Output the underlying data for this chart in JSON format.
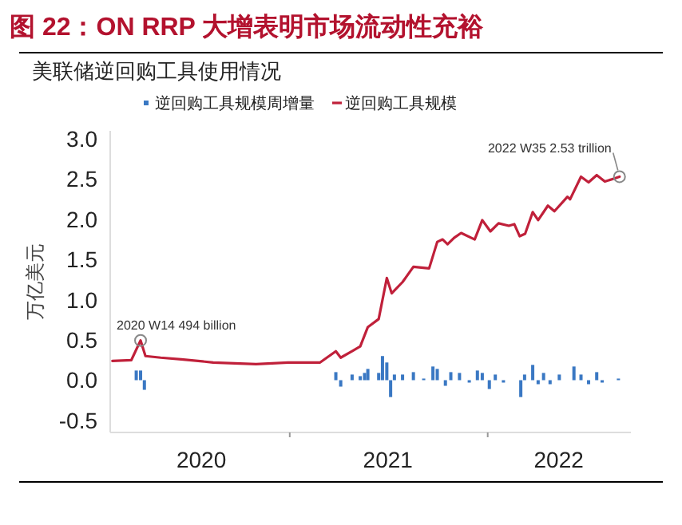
{
  "chart_data": {
    "type": "line",
    "title": "图 22：ON RRP 大增表明市场流动性充裕",
    "subtitle": "美联储逆回购工具使用情况",
    "ylabel": "万亿美元",
    "xlim": [
      "2020-02-05",
      "2022-09-22"
    ],
    "xticks": [
      {
        "value": "2020-07-22",
        "label": "2020"
      },
      {
        "value": "2021-01-01",
        "label": null
      },
      {
        "value": "2021-07-01",
        "label": "2021"
      },
      {
        "value": "2022-01-01",
        "label": null
      },
      {
        "value": "2022-05-12",
        "label": "2022"
      }
    ],
    "ylim": [
      -0.65,
      3.1
    ],
    "yticks": [
      {
        "value": -0.5,
        "label": "-0.5"
      },
      {
        "value": 0,
        "label": "0.0"
      },
      {
        "value": 0.5,
        "label": "0.5"
      },
      {
        "value": 1,
        "label": "1.0"
      },
      {
        "value": 1.5,
        "label": "1.5"
      },
      {
        "value": 2,
        "label": "2.0"
      },
      {
        "value": 2.5,
        "label": "2.5"
      },
      {
        "value": 3,
        "label": "3.0"
      }
    ],
    "legend": "top",
    "grid": false,
    "series": [
      {
        "name": "逆回购工具规模周增量",
        "type": "bar",
        "color": "#3a78c3",
        "x": [
          "2020-03-24",
          "2020-04-01",
          "2020-04-08",
          "2021-03-27",
          "2021-04-05",
          "2021-04-26",
          "2021-05-11",
          "2021-05-19",
          "2021-05-25",
          "2021-06-14",
          "2021-06-21",
          "2021-06-29",
          "2021-07-06",
          "2021-07-13",
          "2021-07-28",
          "2021-08-17",
          "2021-09-05",
          "2021-09-22",
          "2021-09-30",
          "2021-10-15",
          "2021-10-25",
          "2021-11-10",
          "2021-11-28",
          "2021-12-13",
          "2021-12-22",
          "2022-01-04",
          "2022-01-15",
          "2022-01-30",
          "2022-03-03",
          "2022-03-10",
          "2022-03-25",
          "2022-04-04",
          "2022-04-14",
          "2022-04-26",
          "2022-05-13",
          "2022-06-09",
          "2022-06-22",
          "2022-07-06",
          "2022-07-21",
          "2022-07-31",
          "2022-08-30"
        ],
        "values": [
          0.12,
          0.12,
          -0.12,
          0.1,
          -0.08,
          0.07,
          0.05,
          0.09,
          0.14,
          0.09,
          0.3,
          0.22,
          -0.21,
          0.07,
          0.07,
          0.1,
          0.02,
          0.17,
          0.14,
          -0.07,
          0.1,
          0.09,
          -0.03,
          0.12,
          0.09,
          -0.11,
          0.07,
          -0.03,
          -0.21,
          0.07,
          0.19,
          -0.05,
          0.09,
          -0.05,
          0.07,
          0.17,
          0.07,
          -0.05,
          0.1,
          -0.03,
          0.02
        ]
      },
      {
        "name": "逆回购工具规模",
        "color": "#c0203a",
        "x": [
          "2020-02-09",
          "2020-03-15",
          "2020-04-01",
          "2020-04-10",
          "2020-05-08",
          "2020-06-15",
          "2020-08-13",
          "2020-10-31",
          "2020-12-29",
          "2021-02-26",
          "2021-03-27",
          "2021-04-05",
          "2021-04-26",
          "2021-05-11",
          "2021-05-25",
          "2021-06-14",
          "2021-06-29",
          "2021-07-08",
          "2021-07-28",
          "2021-08-17",
          "2021-09-15",
          "2021-09-30",
          "2021-10-10",
          "2021-10-19",
          "2021-10-31",
          "2021-11-13",
          "2021-12-08",
          "2021-12-22",
          "2022-01-06",
          "2022-01-21",
          "2022-02-09",
          "2022-02-19",
          "2022-03-01",
          "2022-03-11",
          "2022-03-25",
          "2022-04-04",
          "2022-04-22",
          "2022-05-04",
          "2022-05-28",
          "2022-06-02",
          "2022-06-22",
          "2022-07-06",
          "2022-07-21",
          "2022-08-05",
          "2022-08-19",
          "2022-09-01"
        ],
        "values": [
          0.24,
          0.25,
          0.494,
          0.3,
          0.28,
          0.26,
          0.22,
          0.2,
          0.22,
          0.22,
          0.36,
          0.28,
          0.36,
          0.42,
          0.66,
          0.76,
          1.27,
          1.08,
          1.22,
          1.41,
          1.39,
          1.72,
          1.75,
          1.69,
          1.77,
          1.83,
          1.75,
          1.99,
          1.85,
          1.95,
          1.92,
          1.94,
          1.79,
          1.82,
          2.09,
          1.99,
          2.17,
          2.1,
          2.28,
          2.25,
          2.53,
          2.46,
          2.55,
          2.47,
          2.5,
          2.53
        ]
      }
    ],
    "annotations": [
      {
        "text": "2020 W14 494 billion",
        "x": "2020-04-01",
        "y": 0.494
      },
      {
        "text": "2022 W35 2.53 trillion",
        "x": "2022-09-01",
        "y": 2.53
      }
    ]
  }
}
